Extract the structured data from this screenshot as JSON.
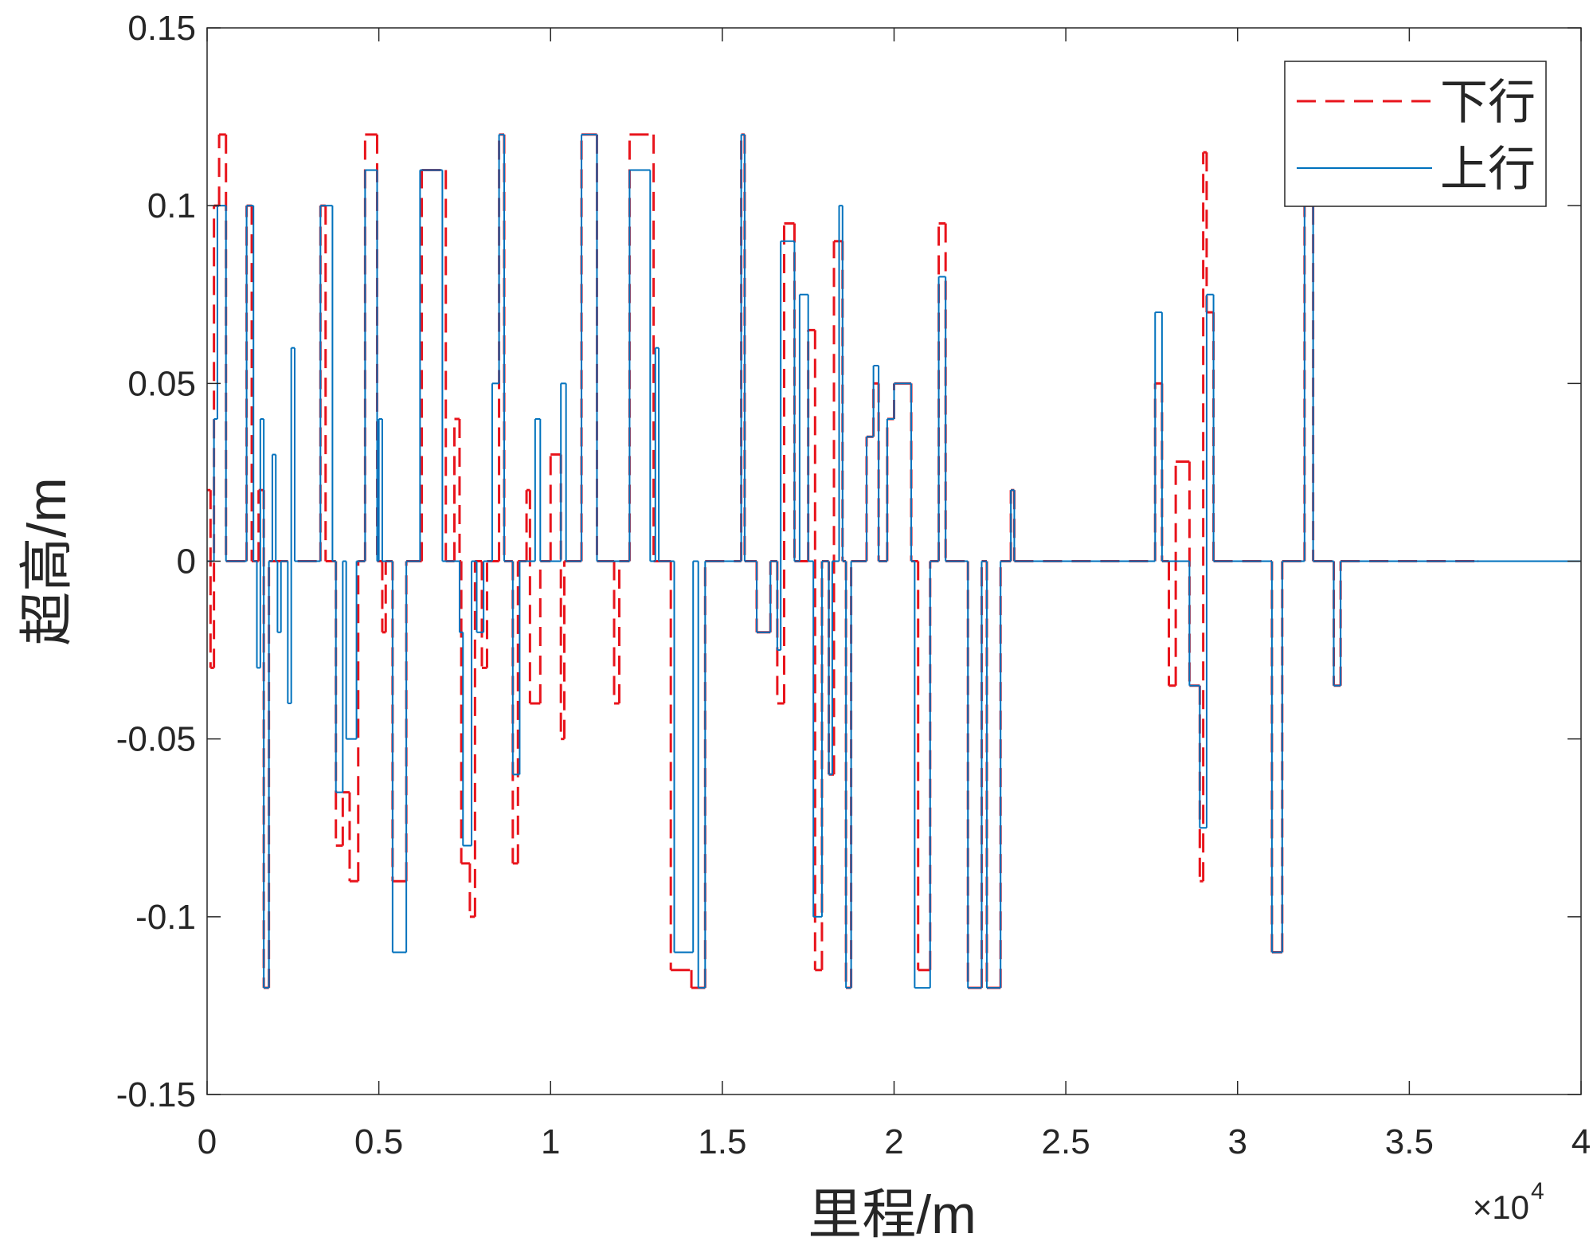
{
  "chart_data": {
    "type": "step-line",
    "xlabel": "里程/m",
    "ylabel": "超高/m",
    "x_multiplier_base": "×10",
    "x_multiplier_exponent": "4",
    "xlim": [
      0,
      40000
    ],
    "ylim": [
      -0.15,
      0.15
    ],
    "xticks": [
      0,
      {
        "value": 5000,
        "label": "0.5"
      },
      {
        "value": 10000,
        "label": "1"
      },
      {
        "value": 15000,
        "label": "1.5"
      },
      {
        "value": 20000,
        "label": "2"
      },
      {
        "value": 25000,
        "label": "2.5"
      },
      {
        "value": 30000,
        "label": "3"
      },
      {
        "value": 35000,
        "label": "3.5"
      },
      {
        "value": 40000,
        "label": "4"
      }
    ],
    "yticks": [
      -0.15,
      -0.1,
      -0.05,
      0,
      0.05,
      0.1,
      0.15
    ],
    "grid": false,
    "box": true,
    "legend_location": "northeast",
    "series": [
      {
        "name": "下行",
        "color": "#e8141c",
        "dash": true,
        "x": [
          0,
          100,
          200,
          350,
          550,
          1150,
          1300,
          1500,
          1650,
          1800,
          3300,
          3450,
          3750,
          3950,
          4150,
          4400,
          4600,
          4950,
          5100,
          5200,
          5400,
          5800,
          6250,
          6950,
          7200,
          7350,
          7400,
          7650,
          7800,
          8000,
          8150,
          8500,
          8650,
          8900,
          9050,
          9300,
          9400,
          9700,
          10000,
          10300,
          10400,
          10900,
          11350,
          11850,
          12000,
          12300,
          13000,
          13500,
          14100,
          14300,
          14500,
          15550,
          15650,
          16000,
          16400,
          16600,
          16800,
          17100,
          17500,
          17700,
          17900,
          18100,
          18250,
          18500,
          18600,
          18750,
          19200,
          19400,
          19550,
          19800,
          20000,
          20500,
          20700,
          21050,
          21300,
          21500,
          22150,
          22550,
          22700,
          23100,
          23400,
          23500,
          27600,
          27800,
          28000,
          28200,
          28600,
          28900,
          29000,
          29100,
          29300,
          31000,
          31300,
          31950,
          32200,
          32800,
          33000,
          37000
        ],
        "values": [
          0.02,
          -0.03,
          0.1,
          0.12,
          0,
          0.1,
          0,
          0.02,
          -0.12,
          0,
          0.1,
          0,
          -0.08,
          -0.065,
          -0.09,
          0,
          0.12,
          0,
          -0.02,
          0,
          -0.09,
          0,
          0.11,
          0,
          0.04,
          0,
          -0.085,
          -0.1,
          0,
          -0.03,
          0,
          0.12,
          0,
          -0.085,
          0,
          0.02,
          -0.04,
          0,
          0.03,
          -0.05,
          0,
          0.12,
          0,
          -0.04,
          0,
          0.12,
          0,
          -0.115,
          -0.12,
          -0.12,
          0,
          0.12,
          0,
          -0.02,
          0,
          -0.04,
          0.095,
          0,
          0.065,
          -0.115,
          0,
          -0.06,
          0.09,
          0,
          -0.12,
          0,
          0.035,
          0.05,
          0,
          0.04,
          0.05,
          0,
          -0.115,
          0,
          0.095,
          0,
          -0.12,
          0,
          -0.12,
          0,
          0.02,
          0,
          0.05,
          0,
          -0.035,
          0.028,
          -0.035,
          -0.09,
          0.115,
          0.07,
          0,
          -0.11,
          0,
          0.1,
          0,
          -0.035,
          0,
          0
        ]
      },
      {
        "name": "上行",
        "color": "#0072bd",
        "dash": false,
        "x": [
          0,
          200,
          300,
          550,
          1150,
          1350,
          1450,
          1550,
          1650,
          1800,
          1900,
          2000,
          2050,
          2150,
          2350,
          2450,
          2550,
          3300,
          3650,
          3750,
          3950,
          4050,
          4350,
          4600,
          4950,
          5000,
          5100,
          5400,
          5800,
          6200,
          6850,
          7350,
          7450,
          7700,
          7850,
          8050,
          8300,
          8500,
          8650,
          8900,
          9100,
          9550,
          9700,
          10300,
          10450,
          10900,
          11350,
          12300,
          12900,
          13050,
          13150,
          13600,
          14150,
          14300,
          14500,
          15550,
          15650,
          16000,
          16400,
          16600,
          16700,
          17100,
          17250,
          17500,
          17650,
          17900,
          18100,
          18200,
          18400,
          18500,
          18600,
          18750,
          19200,
          19400,
          19550,
          19800,
          20000,
          20500,
          20600,
          21050,
          21300,
          21500,
          22150,
          22550,
          22700,
          23100,
          23400,
          23500,
          27600,
          27800,
          28600,
          28900,
          29100,
          29300,
          31000,
          31300,
          31950,
          32200,
          32800,
          33000,
          40000
        ],
        "values": [
          0,
          0.04,
          0.1,
          0,
          0.1,
          0,
          -0.03,
          0.04,
          -0.12,
          0,
          0.03,
          0,
          -0.02,
          0,
          -0.04,
          0.06,
          0,
          0.1,
          0,
          -0.065,
          0,
          -0.05,
          0,
          0.11,
          0,
          0.04,
          0,
          -0.11,
          0,
          0.11,
          0,
          -0.02,
          -0.08,
          0,
          -0.02,
          0,
          0.05,
          0.12,
          0,
          -0.06,
          0,
          0.04,
          0,
          0.05,
          0,
          0.12,
          0,
          0.11,
          0,
          0.06,
          0,
          -0.11,
          0,
          -0.12,
          0,
          0.12,
          0,
          -0.02,
          0,
          -0.025,
          0.09,
          0,
          0.075,
          0,
          -0.1,
          0,
          -0.06,
          0,
          0.1,
          0,
          -0.12,
          0,
          0.035,
          0.055,
          0,
          0.04,
          0.05,
          0,
          -0.12,
          0,
          0.08,
          0,
          -0.12,
          0,
          -0.12,
          0,
          0.02,
          0,
          0.07,
          0,
          -0.035,
          -0.075,
          0.075,
          0,
          -0.11,
          0,
          0.1,
          0,
          -0.035,
          0,
          0
        ]
      }
    ]
  }
}
